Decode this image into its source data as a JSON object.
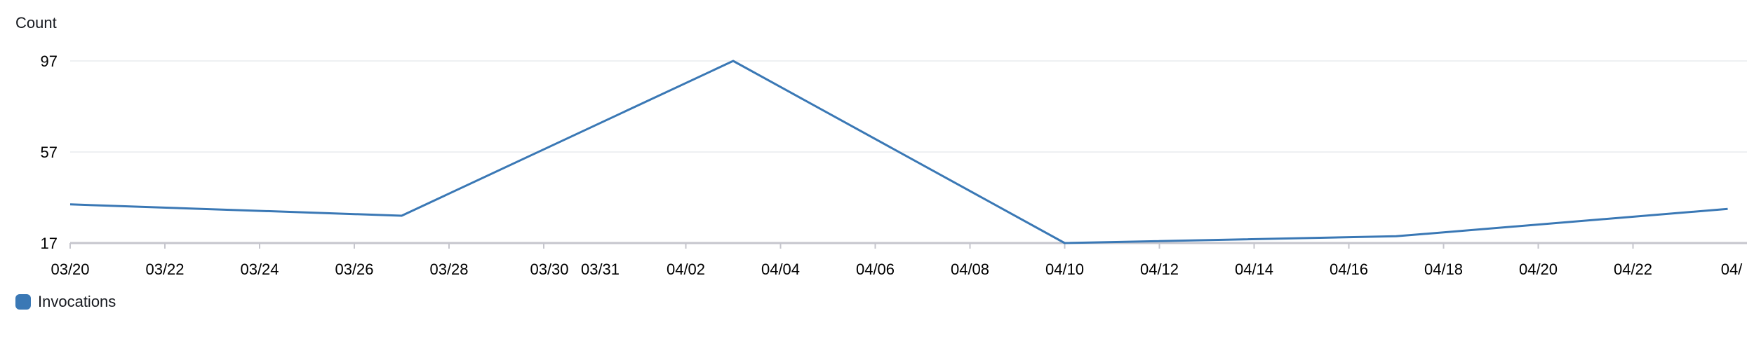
{
  "chart_data": {
    "type": "line",
    "ylabel": "Count",
    "yticks": [
      17,
      57,
      97
    ],
    "ylim": [
      17,
      97
    ],
    "x_tick_labels": [
      "03/20",
      "03/22",
      "03/24",
      "03/26",
      "03/28",
      "03/30",
      "03/31",
      "04/02",
      "04/04",
      "04/06",
      "04/08",
      "04/10",
      "04/12",
      "04/14",
      "04/16",
      "04/18",
      "04/20",
      "04/22",
      "04/"
    ],
    "series": [
      {
        "name": "Invocations",
        "color": "#3a78b5",
        "points": [
          {
            "x": "03/20",
            "y": 34
          },
          {
            "x": "03/27",
            "y": 29
          },
          {
            "x": "04/03",
            "y": 97
          },
          {
            "x": "04/10",
            "y": 17
          },
          {
            "x": "04/17",
            "y": 20
          },
          {
            "x": "04/24",
            "y": 32
          }
        ]
      }
    ],
    "legend": "bottom-left",
    "grid": true
  }
}
